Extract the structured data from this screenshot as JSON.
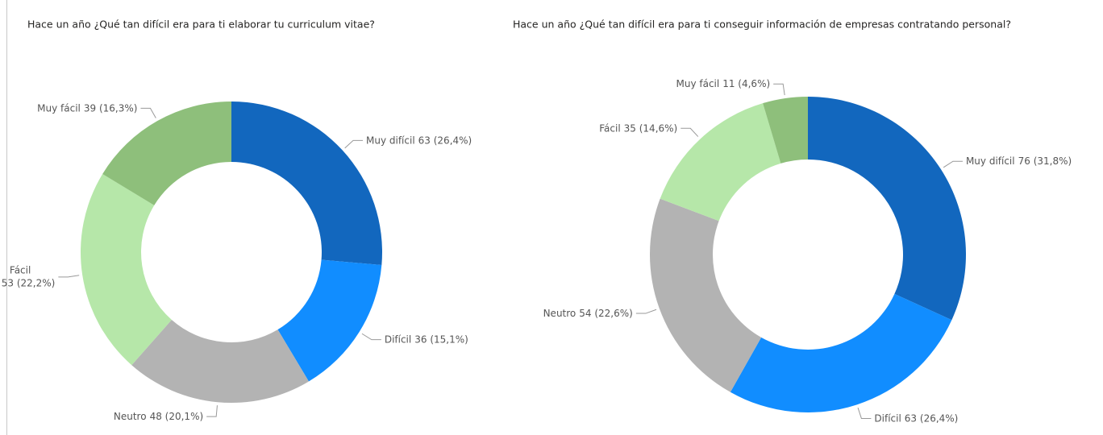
{
  "chart_data": [
    {
      "type": "donut",
      "title": "Hace un año ¿Qué tan difícil era para ti elaborar tu curriculum vitae?",
      "categories": [
        "Muy difícil",
        "Difícil",
        "Neutro",
        "Fácil",
        "Muy fácil"
      ],
      "values": [
        63,
        36,
        48,
        53,
        39
      ],
      "value_labels": [
        "63 (26,4%)",
        "36 (15,1%)",
        "48 (20,1%)",
        "53 (22,2%)",
        "39 (16,3%)"
      ],
      "colors": [
        "#1267be",
        "#118dff",
        "#b3b3b3",
        "#b6e7a9",
        "#8ebf7b"
      ]
    },
    {
      "type": "donut",
      "title": "Hace un año ¿Qué tan difícil era para ti conseguir información de empresas contratando personal?",
      "categories": [
        "Muy difícil",
        "Difícil",
        "Neutro",
        "Fácil",
        "Muy fácil"
      ],
      "values": [
        76,
        63,
        54,
        35,
        11
      ],
      "value_labels": [
        "76 (31,8%)",
        "63 (26,4%)",
        "54 (22,6%)",
        "35 (14,6%)",
        "11 (4,6%)"
      ],
      "colors": [
        "#1267be",
        "#118dff",
        "#b3b3b3",
        "#b6e7a9",
        "#8ebf7b"
      ]
    }
  ]
}
